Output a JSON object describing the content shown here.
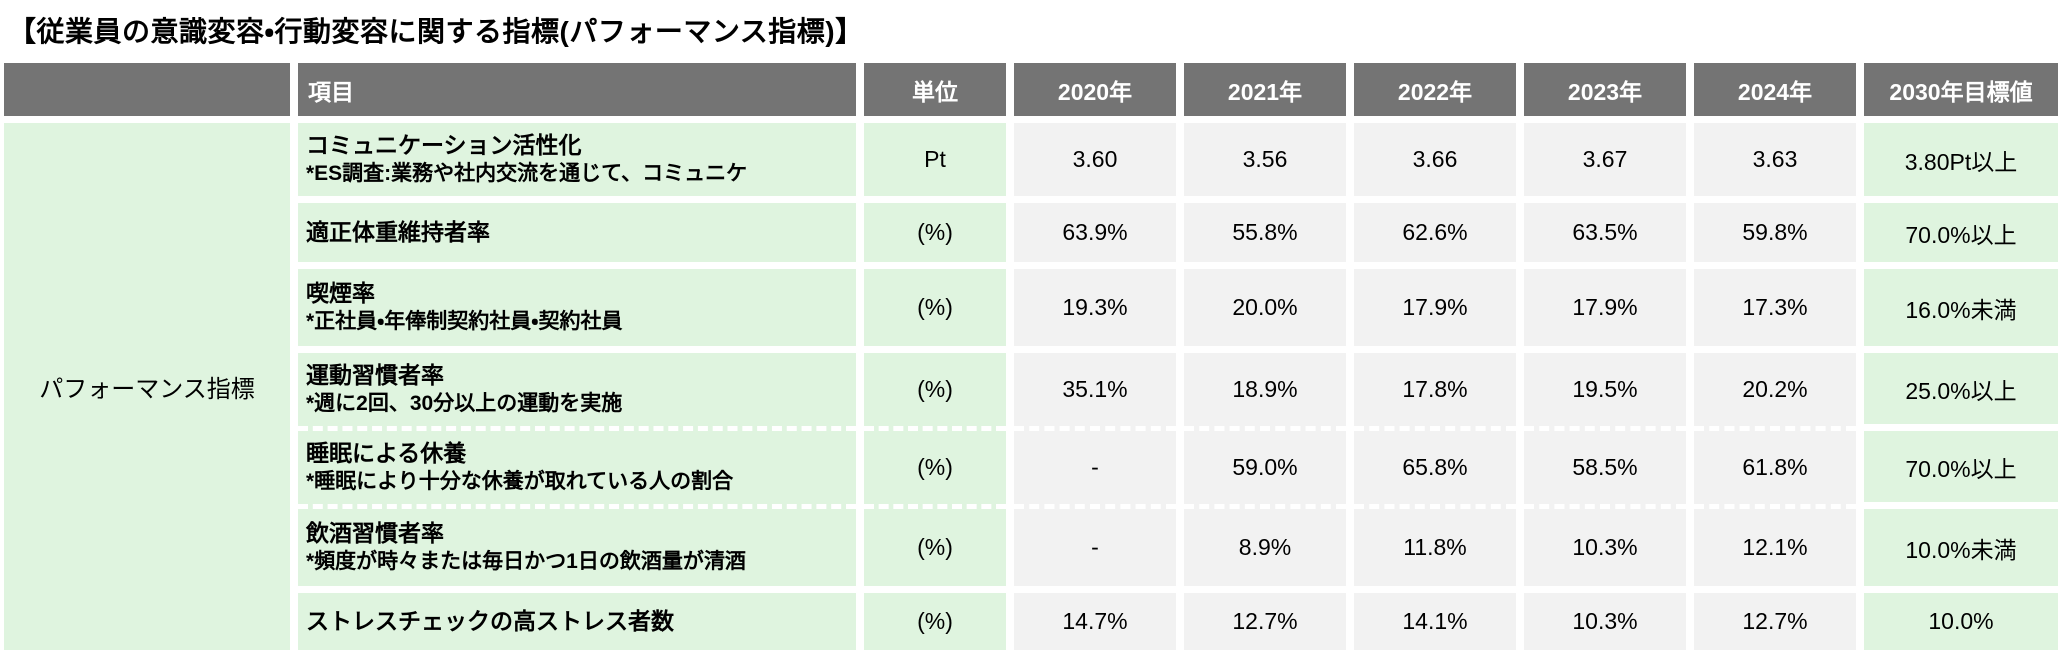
{
  "title": "【従業員の意識変容・行動変容に関する指標(パフォーマンス指標)】",
  "colors": {
    "header_bg": "#747474",
    "header_text": "#ffffff",
    "green_bg": "#dff4df",
    "value_bg": "#f2f2f2"
  },
  "table": {
    "group_label": "パフォーマンス指標",
    "headers": {
      "item": "項目",
      "unit": "単位",
      "years": [
        "2020年",
        "2021年",
        "2022年",
        "2023年",
        "2024年"
      ],
      "target": "2030年目標値"
    },
    "rows": [
      {
        "item": "コミュニケーション活性化",
        "note": "*ES調査:業務や社内交流を通じて、コミュニケ",
        "unit": "Pt",
        "values": [
          "3.60",
          "3.56",
          "3.66",
          "3.67",
          "3.63"
        ],
        "target": "3.80Pt以上"
      },
      {
        "item": "適正体重維持者率",
        "note": "",
        "unit": "(%)",
        "values": [
          "63.9%",
          "55.8%",
          "62.6%",
          "63.5%",
          "59.8%"
        ],
        "target": "70.0%以上"
      },
      {
        "item": "喫煙率",
        "note": "*正社員・年俸制契約社員・契約社員",
        "unit": "(%)",
        "values": [
          "19.3%",
          "20.0%",
          "17.9%",
          "17.9%",
          "17.3%"
        ],
        "target": "16.0%未満"
      },
      {
        "item": "運動習慣者率",
        "note": "*週に2回、30分以上の運動を実施",
        "unit": "(%)",
        "values": [
          "35.1%",
          "18.9%",
          "17.8%",
          "19.5%",
          "20.2%"
        ],
        "target": "25.0%以上"
      },
      {
        "item": "睡眠による休養",
        "note": "*睡眠により十分な休養が取れている人の割合",
        "unit": "(%)",
        "values": [
          "-",
          "59.0%",
          "65.8%",
          "58.5%",
          "61.8%"
        ],
        "target": "70.0%以上"
      },
      {
        "item": "飲酒習慣者率",
        "note": "*頻度が時々または毎日かつ1日の飲酒量が清酒",
        "unit": "(%)",
        "values": [
          "-",
          "8.9%",
          "11.8%",
          "10.3%",
          "12.1%"
        ],
        "target": "10.0%未満"
      },
      {
        "item": "ストレスチェックの高ストレス者数",
        "note": "",
        "unit": "(%)",
        "values": [
          "14.7%",
          "12.7%",
          "14.1%",
          "10.3%",
          "12.7%"
        ],
        "target": "10.0%"
      }
    ]
  },
  "chart_data": {
    "type": "table",
    "title": "従業員の意識変容・行動変容に関する指標(パフォーマンス指標)",
    "group": "パフォーマンス指標",
    "columns": [
      "項目",
      "単位",
      "2020年",
      "2021年",
      "2022年",
      "2023年",
      "2024年",
      "2030年目標値"
    ],
    "rows": [
      [
        "コミュニケーション活性化 *ES調査:業務や社内交流を通じて、コミュニケ",
        "Pt",
        "3.60",
        "3.56",
        "3.66",
        "3.67",
        "3.63",
        "3.80Pt以上"
      ],
      [
        "適正体重維持者率",
        "(%)",
        "63.9%",
        "55.8%",
        "62.6%",
        "63.5%",
        "59.8%",
        "70.0%以上"
      ],
      [
        "喫煙率 *正社員・年俸制契約社員・契約社員",
        "(%)",
        "19.3%",
        "20.0%",
        "17.9%",
        "17.9%",
        "17.3%",
        "16.0%未満"
      ],
      [
        "運動習慣者率 *週に2回、30分以上の運動を実施",
        "(%)",
        "35.1%",
        "18.9%",
        "17.8%",
        "19.5%",
        "20.2%",
        "25.0%以上"
      ],
      [
        "睡眠による休養 *睡眠により十分な休養が取れている人の割合",
        "(%)",
        "-",
        "59.0%",
        "65.8%",
        "58.5%",
        "61.8%",
        "70.0%以上"
      ],
      [
        "飲酒習慣者率 *頻度が時々または毎日かつ1日の飲酒量が清酒",
        "(%)",
        "-",
        "8.9%",
        "11.8%",
        "10.3%",
        "12.1%",
        "10.0%未満"
      ],
      [
        "ストレスチェックの高ストレス者数",
        "(%)",
        "14.7%",
        "12.7%",
        "14.1%",
        "10.3%",
        "12.7%",
        "10.0%"
      ]
    ]
  }
}
